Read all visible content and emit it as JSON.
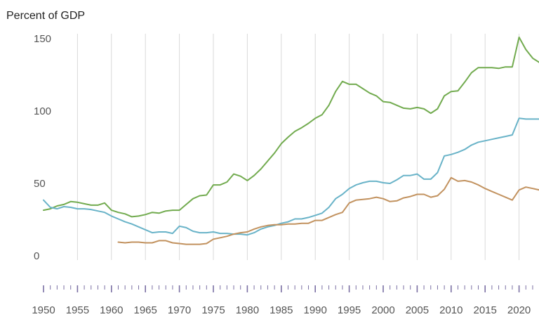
{
  "chart_data": {
    "type": "line",
    "title": "",
    "ylabel": "Percent of GDP",
    "xlabel": "",
    "xlim": [
      1950,
      2023
    ],
    "ylim": [
      0,
      150
    ],
    "y_ticks": [
      "0",
      "50",
      "100",
      "150"
    ],
    "x_ticks": [
      "1950",
      "1955",
      "1960",
      "1965",
      "1970",
      "1975",
      "1980",
      "1985",
      "1990",
      "1995",
      "2000",
      "2005",
      "2010",
      "2015",
      "2020"
    ],
    "grid": "vertical",
    "legend": "none",
    "series": [
      {
        "color": "#72ab4f",
        "x": [
          1950,
          1951,
          1952,
          1953,
          1954,
          1955,
          1956,
          1957,
          1958,
          1959,
          1960,
          1961,
          1962,
          1963,
          1964,
          1965,
          1966,
          1967,
          1968,
          1969,
          1970,
          1971,
          1972,
          1973,
          1974,
          1975,
          1976,
          1977,
          1978,
          1979,
          1980,
          1981,
          1982,
          1983,
          1984,
          1985,
          1986,
          1987,
          1988,
          1989,
          1990,
          1991,
          1992,
          1993,
          1994,
          1995,
          1996,
          1997,
          1998,
          1999,
          2000,
          2001,
          2002,
          2003,
          2004,
          2005,
          2006,
          2007,
          2008,
          2009,
          2010,
          2011,
          2012,
          2013,
          2014,
          2015,
          2016,
          2017,
          2018,
          2019,
          2020,
          2021,
          2022,
          2023
        ],
        "values": [
          31,
          32,
          34,
          35,
          37,
          36.5,
          35.5,
          34.5,
          34.5,
          36,
          31,
          29.5,
          28.5,
          26.5,
          27,
          28,
          29.5,
          29,
          30.5,
          31,
          31,
          35,
          39,
          41,
          41.5,
          48.5,
          48.5,
          50.5,
          56,
          54.5,
          51.5,
          55,
          59.5,
          65,
          70.5,
          77,
          81.5,
          85.5,
          88,
          91,
          94.5,
          97,
          103.5,
          113,
          120,
          118,
          118,
          115,
          112,
          110,
          106,
          105.5,
          103.5,
          101.5,
          101,
          102,
          101,
          98,
          101,
          110,
          113,
          113.5,
          119.5,
          126,
          129.5,
          129.5,
          129.5,
          129,
          130,
          130,
          150.5,
          142,
          136,
          133
        ]
      },
      {
        "color": "#69b3c8",
        "x": [
          1950,
          1951,
          1952,
          1953,
          1954,
          1955,
          1956,
          1957,
          1958,
          1959,
          1960,
          1961,
          1962,
          1963,
          1964,
          1965,
          1966,
          1967,
          1968,
          1969,
          1970,
          1971,
          1972,
          1973,
          1974,
          1975,
          1976,
          1977,
          1978,
          1979,
          1980,
          1981,
          1982,
          1983,
          1984,
          1985,
          1986,
          1987,
          1988,
          1989,
          1990,
          1991,
          1992,
          1993,
          1994,
          1995,
          1996,
          1997,
          1998,
          1999,
          2000,
          2001,
          2002,
          2003,
          2004,
          2005,
          2006,
          2007,
          2008,
          2009,
          2010,
          2011,
          2012,
          2013,
          2014,
          2015,
          2016,
          2017,
          2018,
          2019,
          2020,
          2021,
          2022,
          2023
        ],
        "values": [
          38,
          33,
          32,
          33.5,
          33,
          32,
          32,
          31.5,
          30.5,
          29.5,
          27,
          25,
          23,
          21.5,
          19.5,
          17.5,
          15.5,
          16,
          16,
          15,
          20,
          19,
          16.5,
          15.5,
          15.5,
          16,
          15,
          15,
          14.5,
          14.5,
          14,
          15.5,
          18,
          19.5,
          20.5,
          22,
          23,
          25,
          25,
          26,
          27.5,
          29,
          33,
          39,
          42,
          46,
          48.5,
          50,
          51,
          51,
          50,
          49.5,
          52,
          55,
          55,
          56,
          52.5,
          52.5,
          57,
          68.5,
          69.5,
          71,
          73,
          76,
          78,
          79,
          80,
          81,
          82,
          83,
          94.5,
          94,
          94,
          94
        ]
      },
      {
        "color": "#c2925f",
        "x": [
          1961,
          1962,
          1963,
          1964,
          1965,
          1966,
          1967,
          1968,
          1969,
          1970,
          1971,
          1972,
          1973,
          1974,
          1975,
          1976,
          1977,
          1978,
          1979,
          1980,
          1981,
          1982,
          1983,
          1984,
          1985,
          1986,
          1987,
          1988,
          1989,
          1990,
          1991,
          1992,
          1993,
          1994,
          1995,
          1996,
          1997,
          1998,
          1999,
          2000,
          2001,
          2002,
          2003,
          2004,
          2005,
          2006,
          2007,
          2008,
          2009,
          2010,
          2011,
          2012,
          2013,
          2014,
          2015,
          2016,
          2017,
          2018,
          2019,
          2020,
          2021,
          2022,
          2023
        ],
        "values": [
          9,
          8.5,
          9,
          9,
          8.5,
          8.5,
          10,
          10,
          8.5,
          8,
          7.5,
          7.5,
          7.5,
          8,
          11,
          12,
          13,
          14.5,
          15.5,
          16,
          18,
          19.5,
          20.5,
          21,
          21,
          21.5,
          21.5,
          22,
          22,
          24,
          24,
          26,
          28,
          29.5,
          36,
          38,
          38.5,
          39,
          40,
          39,
          37,
          37.5,
          39.5,
          40.5,
          42,
          42,
          40,
          41,
          45.5,
          53.5,
          51,
          51.5,
          50.5,
          48.5,
          46,
          44,
          42,
          40,
          38,
          45,
          47,
          46,
          45
        ]
      }
    ]
  }
}
